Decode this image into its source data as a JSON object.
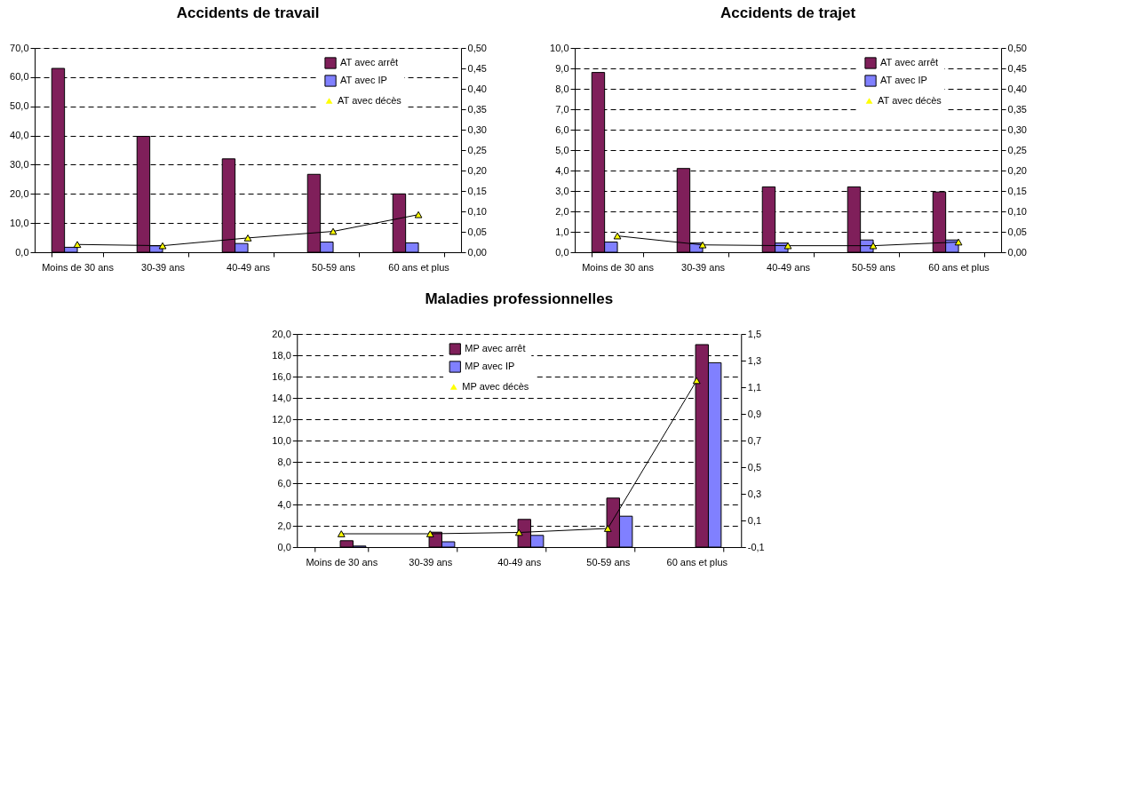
{
  "chart_data": [
    {
      "type": "bar",
      "title": "Accidents de travail",
      "categories": [
        "Moins de 30 ans",
        "30-39 ans",
        "40-49 ans",
        "50-59 ans",
        "60 ans et plus"
      ],
      "series": [
        {
          "name": "AT avec arrêt",
          "color": "#7f1f5a",
          "values": [
            63.0,
            39.7,
            32.0,
            26.7,
            20.0
          ]
        },
        {
          "name": "AT avec IP",
          "color": "#8080ff",
          "values": [
            1.7,
            2.2,
            3.0,
            3.5,
            3.2
          ]
        },
        {
          "name": "AT avec décès",
          "type": "line",
          "axis": "y2",
          "color": "#000000",
          "line_style": "solid",
          "values": [
            0.019,
            0.016,
            0.035,
            0.051,
            0.092
          ]
        }
      ],
      "ylim": [
        0,
        70
      ],
      "yticks": [
        {
          "value": 0,
          "label": "0,0"
        },
        {
          "value": 10,
          "label": "10,0"
        },
        {
          "value": 20,
          "label": "20,0"
        },
        {
          "value": 30,
          "label": "30,0"
        },
        {
          "value": 40,
          "label": "40,0"
        },
        {
          "value": 50,
          "label": "50,0"
        },
        {
          "value": 60,
          "label": "60,0"
        },
        {
          "value": 70,
          "label": "70,0"
        }
      ],
      "y2lim": [
        0,
        0.5
      ],
      "y2ticks": [
        {
          "value": 0,
          "label": "0,00"
        },
        {
          "value": 0.05,
          "label": "0,05"
        },
        {
          "value": 0.1,
          "label": "0,10"
        },
        {
          "value": 0.15,
          "label": "0,15"
        },
        {
          "value": 0.2,
          "label": "0,20"
        },
        {
          "value": 0.25,
          "label": "0,25"
        },
        {
          "value": 0.3,
          "label": "0,30"
        },
        {
          "value": 0.35,
          "label": "0,35"
        },
        {
          "value": 0.4,
          "label": "0,40"
        },
        {
          "value": 0.45,
          "label": "0,45"
        },
        {
          "value": 0.5,
          "label": "0,50"
        }
      ],
      "grid": "y",
      "legend": "top right",
      "marker": "triangle"
    },
    {
      "type": "bar",
      "title": "Accidents de trajet",
      "categories": [
        "Moins de 30 ans",
        "30-39 ans",
        "40-49 ans",
        "50-59 ans",
        "60 ans et plus"
      ],
      "series": [
        {
          "name": "AT avec arrêt",
          "color": "#7f1f5a",
          "values": [
            8.8,
            4.1,
            3.2,
            3.2,
            2.95
          ]
        },
        {
          "name": "AT avec IP",
          "color": "#8080ff",
          "values": [
            0.5,
            0.45,
            0.45,
            0.6,
            0.6
          ]
        },
        {
          "name": "AT avec décès",
          "type": "line",
          "axis": "y2",
          "color": "#000000",
          "line_style": "solid",
          "values": [
            0.04,
            0.018,
            0.016,
            0.016,
            0.025
          ]
        }
      ],
      "ylim": [
        0,
        10
      ],
      "yticks": [
        {
          "value": 0,
          "label": "0,0"
        },
        {
          "value": 1,
          "label": "1,0"
        },
        {
          "value": 2,
          "label": "2,0"
        },
        {
          "value": 3,
          "label": "3,0"
        },
        {
          "value": 4,
          "label": "4,0"
        },
        {
          "value": 5,
          "label": "5,0"
        },
        {
          "value": 6,
          "label": "6,0"
        },
        {
          "value": 7,
          "label": "7,0"
        },
        {
          "value": 8,
          "label": "8,0"
        },
        {
          "value": 9,
          "label": "9,0"
        },
        {
          "value": 10,
          "label": "10,0"
        }
      ],
      "y2lim": [
        0,
        0.5
      ],
      "y2ticks": [
        {
          "value": 0,
          "label": "0,00"
        },
        {
          "value": 0.05,
          "label": "0,05"
        },
        {
          "value": 0.1,
          "label": "0,10"
        },
        {
          "value": 0.15,
          "label": "0,15"
        },
        {
          "value": 0.2,
          "label": "0,20"
        },
        {
          "value": 0.25,
          "label": "0,25"
        },
        {
          "value": 0.3,
          "label": "0,30"
        },
        {
          "value": 0.35,
          "label": "0,35"
        },
        {
          "value": 0.4,
          "label": "0,40"
        },
        {
          "value": 0.45,
          "label": "0,45"
        },
        {
          "value": 0.5,
          "label": "0,50"
        }
      ],
      "grid": "y",
      "legend": "top right",
      "marker": "triangle"
    },
    {
      "type": "bar",
      "title": "Maladies professionnelles",
      "categories": [
        "Moins de 30 ans",
        "30-39 ans",
        "40-49 ans",
        "50-59 ans",
        "60 ans et plus"
      ],
      "series": [
        {
          "name": "MP avec arrêt",
          "color": "#7f1f5a",
          "values": [
            0.6,
            1.4,
            2.6,
            4.6,
            19.0
          ]
        },
        {
          "name": "MP avec IP",
          "color": "#8080ff",
          "values": [
            0.1,
            0.5,
            1.1,
            2.9,
            17.3
          ]
        },
        {
          "name": "MP avec décès",
          "type": "line",
          "axis": "y2",
          "color": "#000000",
          "line_style": "solid",
          "values": [
            0.0,
            0.0,
            0.01,
            0.04,
            1.15
          ]
        }
      ],
      "ylim": [
        0,
        20
      ],
      "yticks": [
        {
          "value": 0,
          "label": "0,0"
        },
        {
          "value": 2,
          "label": "2,0"
        },
        {
          "value": 4,
          "label": "4,0"
        },
        {
          "value": 6,
          "label": "6,0"
        },
        {
          "value": 8,
          "label": "8,0"
        },
        {
          "value": 10,
          "label": "10,0"
        },
        {
          "value": 12,
          "label": "12,0"
        },
        {
          "value": 14,
          "label": "14,0"
        },
        {
          "value": 16,
          "label": "16,0"
        },
        {
          "value": 18,
          "label": "18,0"
        },
        {
          "value": 20,
          "label": "20,0"
        }
      ],
      "y2lim": [
        -0.1,
        1.5
      ],
      "y2ticks": [
        {
          "value": -0.1,
          "label": "-0,1"
        },
        {
          "value": 0.1,
          "label": "0,1"
        },
        {
          "value": 0.3,
          "label": "0,3"
        },
        {
          "value": 0.5,
          "label": "0,5"
        },
        {
          "value": 0.7,
          "label": "0,7"
        },
        {
          "value": 0.9,
          "label": "0,9"
        },
        {
          "value": 1.1,
          "label": "1,1"
        },
        {
          "value": 1.3,
          "label": "1,3"
        },
        {
          "value": 1.5,
          "label": "1,5"
        }
      ],
      "grid": "y",
      "legend": "top",
      "marker": "triangle"
    }
  ]
}
